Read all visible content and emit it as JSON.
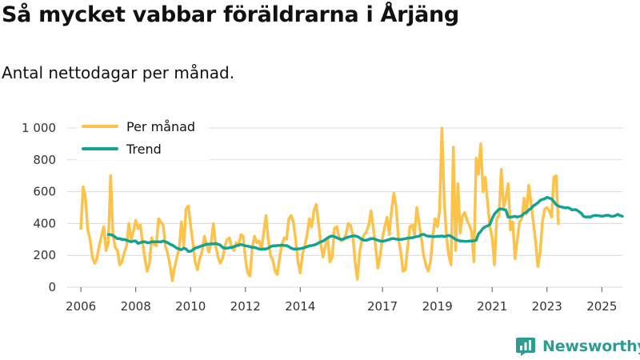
{
  "title": "Så mycket vabbar föräldrarna i Årjäng",
  "subtitle": "Antal nettodagar per månad.",
  "brand": {
    "name": "Newsworthy",
    "color": "#2f9c94"
  },
  "colors": {
    "per_manad": "#fcc24a",
    "trend": "#14a392",
    "grid": "#d9d9d9",
    "axis_text": "#333333"
  },
  "chart_data": {
    "type": "line",
    "title": "Så mycket vabbar föräldrarna i Årjäng",
    "subtitle": "Antal nettodagar per månad.",
    "xlabel": "",
    "ylabel": "",
    "ylim": [
      0,
      1000
    ],
    "xlim": [
      "2005-07",
      "2025-10"
    ],
    "y_ticks": [
      0,
      200,
      400,
      600,
      800,
      1000
    ],
    "y_tick_labels": [
      "0",
      "200",
      "400",
      "600",
      "800",
      "1 000"
    ],
    "x_ticks": [
      "2006-01",
      "2008-01",
      "2010-01",
      "2012-01",
      "2014-01",
      "2017-01",
      "2019-01",
      "2021-01",
      "2023-01",
      "2025-01"
    ],
    "x_tick_labels": [
      "2006",
      "2008",
      "2010",
      "2012",
      "2014",
      "2017",
      "2019",
      "2021",
      "2023",
      "2025"
    ],
    "grid": "horizontal",
    "legend_position": "top-left",
    "series": [
      {
        "name": "Per månad",
        "color": "#fcc24a",
        "start": "2006-01",
        "interval": "month",
        "values": [
          370,
          630,
          560,
          360,
          300,
          190,
          150,
          180,
          260,
          320,
          380,
          230,
          280,
          700,
          340,
          250,
          230,
          140,
          160,
          220,
          260,
          400,
          300,
          350,
          420,
          370,
          390,
          280,
          180,
          100,
          150,
          310,
          270,
          260,
          430,
          410,
          390,
          260,
          210,
          140,
          40,
          120,
          190,
          240,
          410,
          260,
          490,
          510,
          390,
          280,
          160,
          110,
          180,
          220,
          320,
          270,
          220,
          280,
          400,
          260,
          190,
          150,
          180,
          260,
          300,
          310,
          250,
          230,
          280,
          260,
          330,
          320,
          180,
          90,
          70,
          250,
          320,
          280,
          290,
          240,
          340,
          450,
          300,
          200,
          170,
          100,
          80,
          190,
          270,
          310,
          300,
          430,
          450,
          410,
          300,
          160,
          90,
          210,
          260,
          330,
          430,
          380,
          480,
          520,
          400,
          270,
          190,
          260,
          310,
          160,
          190,
          370,
          380,
          310,
          290,
          300,
          330,
          400,
          390,
          330,
          160,
          50,
          220,
          300,
          330,
          350,
          390,
          480,
          370,
          250,
          120,
          200,
          310,
          380,
          440,
          330,
          490,
          590,
          500,
          300,
          220,
          100,
          110,
          250,
          380,
          390,
          330,
          500,
          400,
          310,
          200,
          140,
          100,
          160,
          320,
          430,
          380,
          480,
          1000,
          550,
          320,
          200,
          140,
          880,
          230,
          650,
          340,
          450,
          470,
          420,
          390,
          350,
          160,
          810,
          710,
          900,
          600,
          690,
          530,
          380,
          310,
          140,
          430,
          450,
          740,
          500,
          560,
          650,
          360,
          410,
          180,
          300,
          410,
          430,
          560,
          460,
          640,
          530,
          410,
          290,
          130,
          220,
          410,
          490,
          500,
          480,
          440,
          690,
          700,
          400
        ]
      },
      {
        "name": "Trend",
        "color": "#14a392",
        "start": "2007-01",
        "interval": "month",
        "values": [
          330,
          330,
          325,
          315,
          305,
          305,
          300,
          300,
          295,
          290,
          285,
          290,
          290,
          275,
          280,
          285,
          285,
          280,
          280,
          285,
          285,
          285,
          285,
          285,
          290,
          285,
          280,
          270,
          265,
          255,
          245,
          240,
          235,
          245,
          240,
          225,
          225,
          235,
          245,
          250,
          255,
          260,
          265,
          270,
          270,
          272,
          272,
          275,
          270,
          265,
          250,
          245,
          245,
          248,
          250,
          255,
          260,
          265,
          268,
          265,
          260,
          258,
          255,
          250,
          250,
          245,
          240,
          238,
          240,
          240,
          245,
          255,
          260,
          260,
          262,
          262,
          265,
          262,
          262,
          255,
          245,
          240,
          240,
          240,
          242,
          245,
          250,
          255,
          260,
          262,
          265,
          270,
          278,
          285,
          290,
          300,
          310,
          318,
          322,
          318,
          310,
          305,
          300,
          303,
          310,
          315,
          318,
          322,
          322,
          318,
          310,
          300,
          295,
          295,
          300,
          305,
          305,
          300,
          295,
          290,
          288,
          292,
          295,
          300,
          305,
          305,
          302,
          300,
          300,
          302,
          305,
          308,
          310,
          310,
          315,
          318,
          320,
          330,
          332,
          325,
          320,
          320,
          318,
          318,
          320,
          320,
          322,
          318,
          322,
          325,
          320,
          310,
          300,
          295,
          290,
          290,
          288,
          288,
          290,
          290,
          292,
          295,
          335,
          350,
          370,
          380,
          385,
          395,
          430,
          460,
          475,
          490,
          492,
          488,
          485,
          440,
          440,
          442,
          445,
          440,
          445,
          448,
          465,
          470,
          485,
          495,
          510,
          520,
          530,
          545,
          552,
          555,
          565,
          560,
          555,
          538,
          518,
          510,
          505,
          502,
          498,
          500,
          495,
          485,
          488,
          485,
          475,
          465,
          445,
          440,
          442,
          440,
          448,
          450,
          450,
          448,
          445,
          448,
          452,
          452,
          445,
          445,
          450,
          458,
          450,
          445
        ]
      }
    ]
  }
}
